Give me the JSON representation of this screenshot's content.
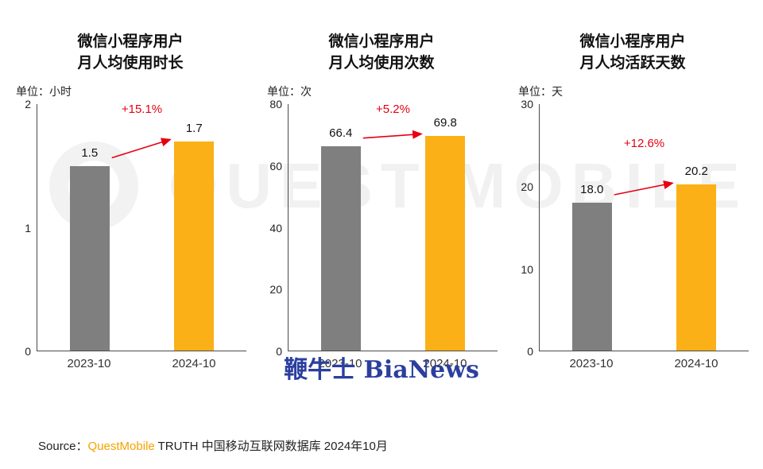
{
  "page": {
    "watermark_center": "QUEST MOBILE",
    "watermark_bottom": "鞭牛士 BiaNews",
    "source_prefix": "Source：",
    "source_brand": "QuestMobile",
    "source_rest": " TRUTH 中国移动互联网数据库 2024年10月"
  },
  "colors": {
    "bar_2023": "#7f7f7f",
    "bar_2024": "#fbb017",
    "growth": "#e60012",
    "axis": "#4a4a4a"
  },
  "chart_data": [
    {
      "type": "bar",
      "title_line1": "微信小程序用户",
      "title_line2": "月人均使用时长",
      "unit": "单位：小时",
      "categories": [
        "2023-10",
        "2024-10"
      ],
      "values": [
        1.5,
        1.7
      ],
      "values_display": [
        "1.5",
        "1.7"
      ],
      "growth": "+15.1%",
      "ylim": [
        0,
        2
      ],
      "yticks": [
        0,
        1,
        2
      ],
      "grid": false,
      "legend": false
    },
    {
      "type": "bar",
      "title_line1": "微信小程序用户",
      "title_line2": "月人均使用次数",
      "unit": "单位：次",
      "categories": [
        "2023-10",
        "2024-10"
      ],
      "values": [
        66.4,
        69.8
      ],
      "values_display": [
        "66.4",
        "69.8"
      ],
      "growth": "+5.2%",
      "ylim": [
        0,
        80
      ],
      "yticks": [
        0,
        20,
        40,
        60,
        80
      ],
      "grid": false,
      "legend": false
    },
    {
      "type": "bar",
      "title_line1": "微信小程序用户",
      "title_line2": "月人均活跃天数",
      "unit": "单位：天",
      "categories": [
        "2023-10",
        "2024-10"
      ],
      "values": [
        18.0,
        20.2
      ],
      "values_display": [
        "18.0",
        "20.2"
      ],
      "growth": "+12.6%",
      "ylim": [
        0,
        30
      ],
      "yticks": [
        0,
        10,
        20,
        30
      ],
      "grid": false,
      "legend": false
    }
  ]
}
